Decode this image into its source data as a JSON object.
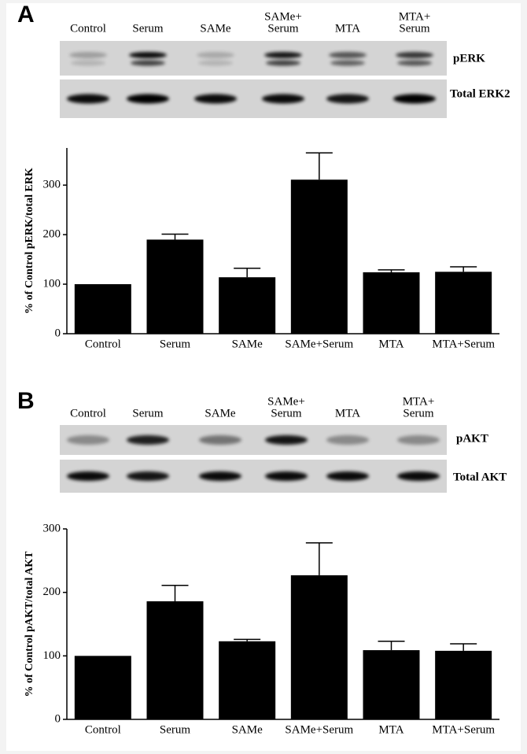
{
  "chart_data": [
    {
      "type": "bar",
      "panel_label": "A",
      "blot_lanes": [
        [
          "Control"
        ],
        [
          "Serum"
        ],
        [
          "SAMe"
        ],
        [
          "SAMe+",
          "Serum"
        ],
        [
          "MTA"
        ],
        [
          "MTA+",
          "Serum"
        ]
      ],
      "blot_rows": [
        "pERK",
        "Total ERK2"
      ],
      "ylabel": "% of Control pERK/total ERK",
      "categories": [
        "Control",
        "Serum",
        "SAMe",
        "SAMe+Serum",
        "MTA",
        "MTA+Serum"
      ],
      "values": [
        100,
        190,
        114,
        311,
        124,
        125
      ],
      "errors": [
        null,
        11,
        18,
        54,
        5,
        10
      ],
      "color": "#000000",
      "ylim": [
        0,
        375
      ],
      "yticks": [
        0,
        100,
        200,
        300
      ]
    },
    {
      "type": "bar",
      "panel_label": "B",
      "blot_lanes": [
        [
          "Control"
        ],
        [
          "Serum"
        ],
        [
          "SAMe"
        ],
        [
          "SAMe+",
          "Serum"
        ],
        [
          "MTA"
        ],
        [
          "MTA+",
          "Serum"
        ]
      ],
      "blot_rows": [
        "pAKT",
        "Total AKT"
      ],
      "ylabel": "% of Control pAKT/total AKT",
      "categories": [
        "Control",
        "Serum",
        "SAMe",
        "SAMe+Serum",
        "MTA",
        "MTA+Serum"
      ],
      "values": [
        100,
        186,
        123,
        227,
        109,
        108
      ],
      "errors": [
        null,
        25,
        3,
        51,
        14,
        11
      ],
      "color": "#000000",
      "ylim": [
        0,
        300
      ],
      "yticks": [
        0,
        100,
        200,
        300
      ]
    }
  ]
}
